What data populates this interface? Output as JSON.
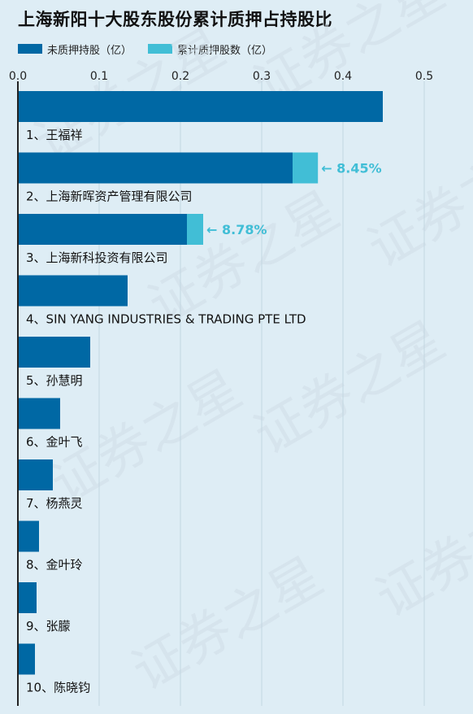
{
  "title": "上海新阳十大股东股份累计质押占持股比",
  "watermark": "证券之星",
  "colors": {
    "unpledged": "#0068a4",
    "pledged": "#41bed6",
    "background": "#deedf5",
    "grid": "#c3d6e1",
    "annotation": "#41bed6"
  },
  "chart_data": {
    "type": "bar",
    "orientation": "horizontal",
    "stacked": true,
    "title": "上海新阳十大股东股份累计质押占持股比",
    "xlim": [
      0,
      0.5
    ],
    "xticks": [
      "0.0",
      "0.1",
      "0.2",
      "0.3",
      "0.4",
      "0.5"
    ],
    "xtick_values": [
      0,
      0.1,
      0.2,
      0.3,
      0.4,
      0.5
    ],
    "grid": true,
    "legend_position": "top-left",
    "categories": [
      "1、王福祥",
      "2、上海新晖资产管理有限公司",
      "3、上海新科投资有限公司",
      "4、SIN YANG INDUSTRIES & TRADING PTE LTD",
      "5、孙慧明",
      "6、金叶飞",
      "7、杨燕灵",
      "8、金叶玲",
      "9、张朦",
      "10、陈晓钧"
    ],
    "series": [
      {
        "name": "未质押持股（亿）",
        "color": "#0068a4",
        "values": [
          0.449,
          0.338,
          0.208,
          0.135,
          0.089,
          0.052,
          0.043,
          0.026,
          0.023,
          0.021
        ]
      },
      {
        "name": "累计质押股数（亿）",
        "color": "#41bed6",
        "values": [
          0,
          0.0312,
          0.02,
          0,
          0,
          0,
          0,
          0,
          0,
          0
        ]
      }
    ],
    "annotations": [
      {
        "category_index": 1,
        "text": "← 8.45%"
      },
      {
        "category_index": 2,
        "text": "← 8.78%"
      }
    ]
  }
}
